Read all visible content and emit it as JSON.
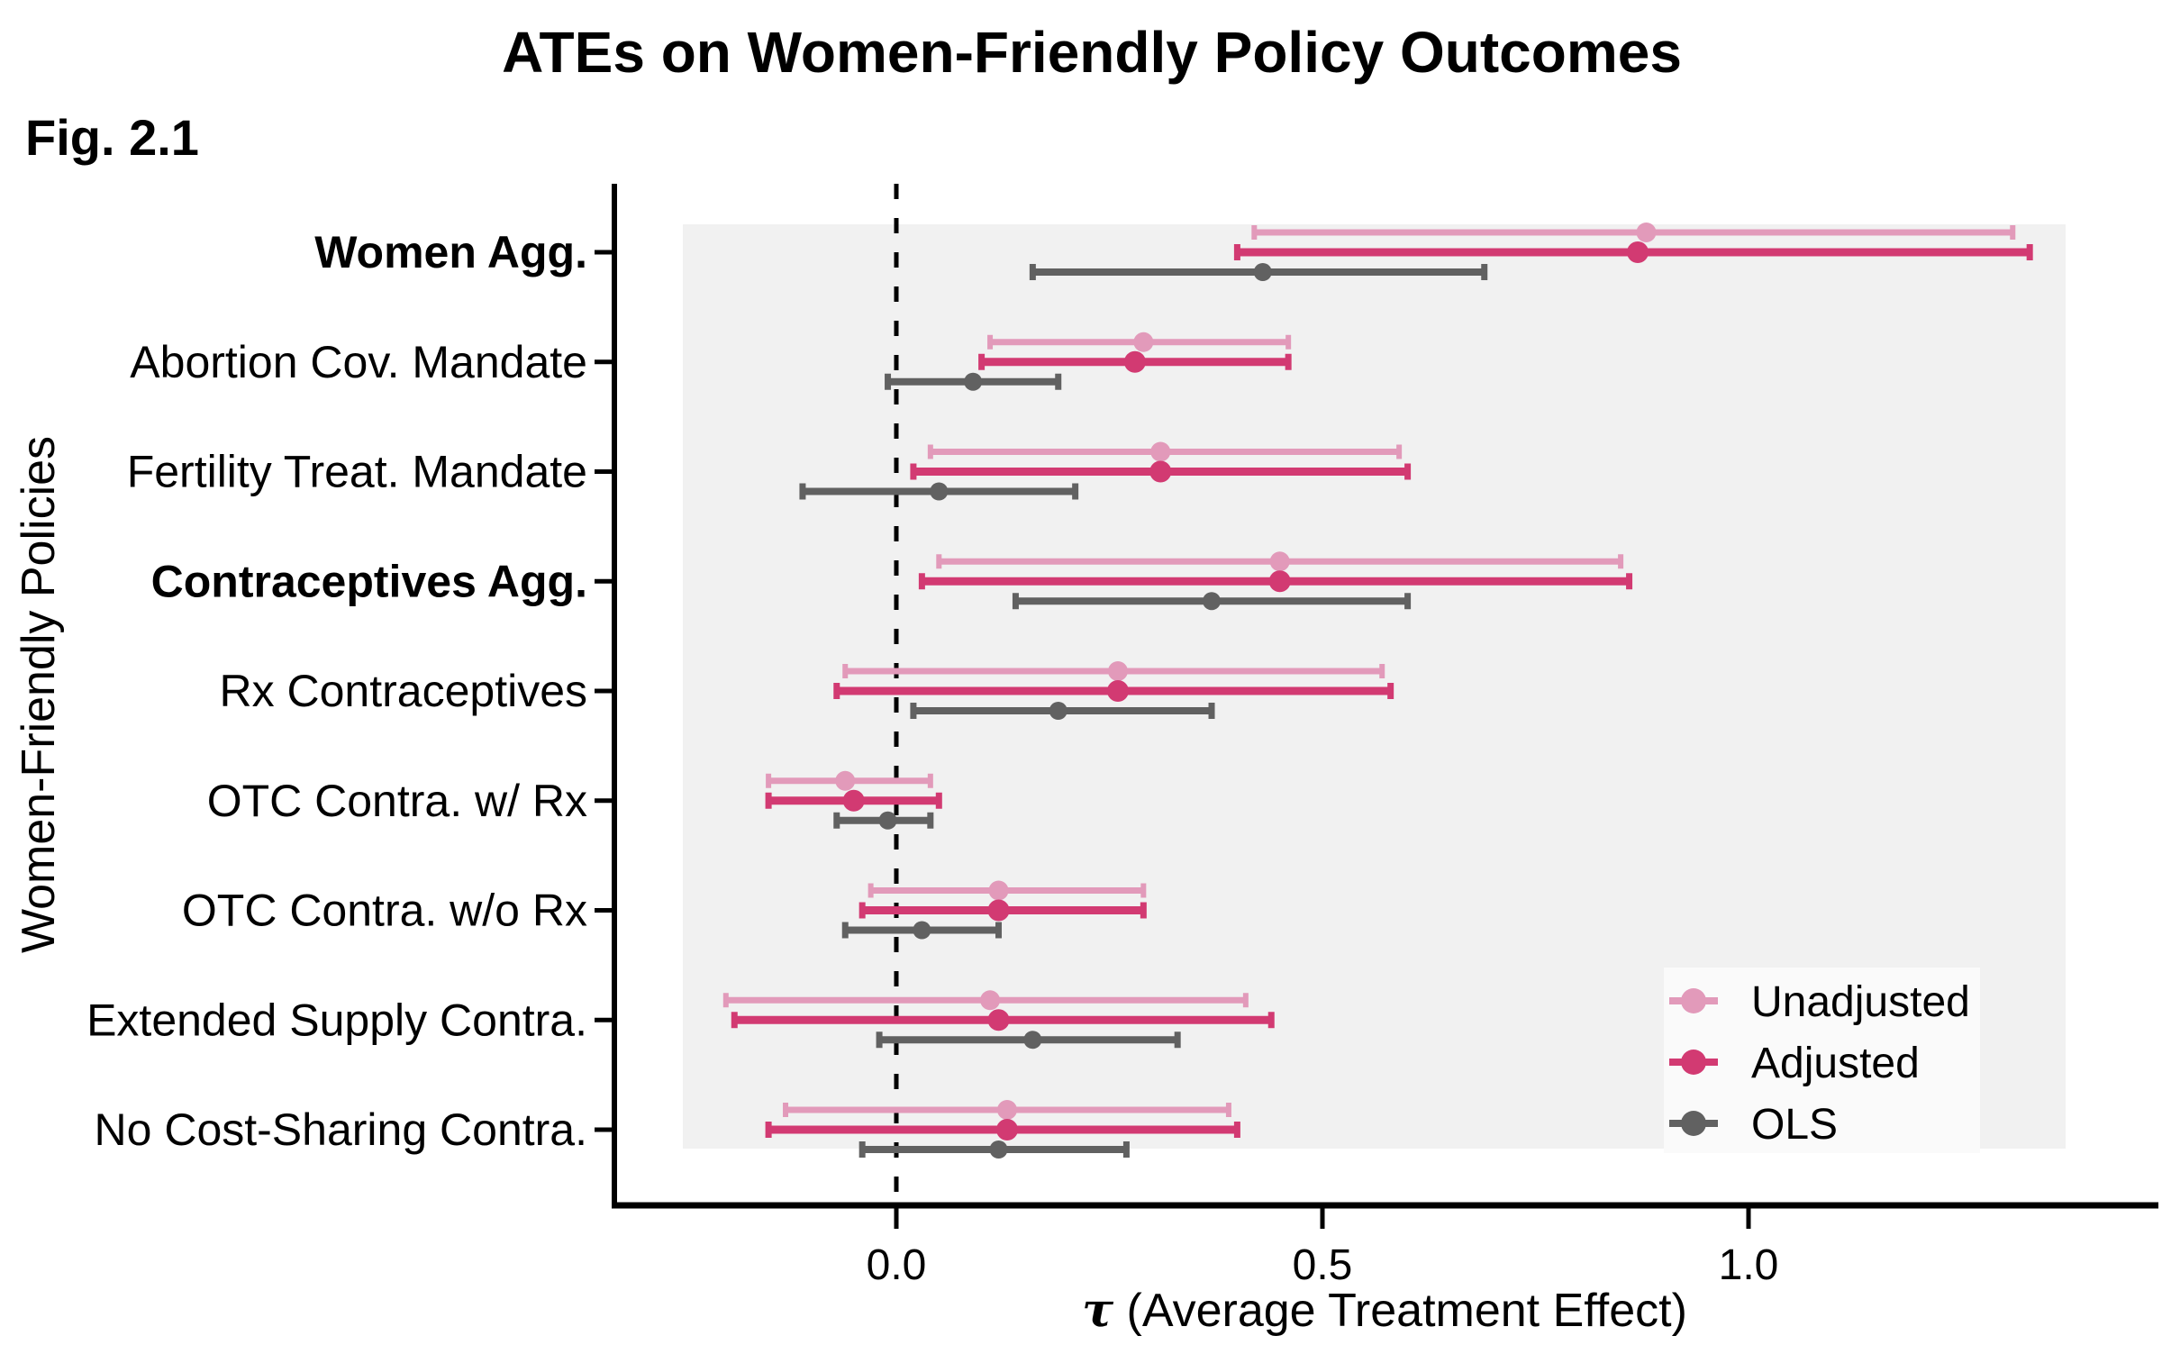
{
  "page": {
    "figure_label": "Fig. 2.1"
  },
  "chart_data": {
    "type": "scatter",
    "subtype": "forest-dot-whisker",
    "title": "ATEs on Women-Friendly Policy Outcomes",
    "xlabel": "τ (Average Treatment Effect)",
    "xlabel_symbol": "τ",
    "xlabel_rest": " (Average Treatment Effect)",
    "ylabel": "Women-Friendly Policies",
    "xlim": [
      -0.33,
      1.48
    ],
    "xtick_values": [
      0.0,
      0.5,
      1.0
    ],
    "xtick_labels": [
      "0.0",
      "0.5",
      "1.0"
    ],
    "zero_reference_line": 0.0,
    "grid": false,
    "legend_position": "inside-bottom-right",
    "categories": [
      {
        "label": "Women Agg.",
        "bold": true
      },
      {
        "label": "Abortion Cov. Mandate",
        "bold": false
      },
      {
        "label": "Fertility Treat. Mandate",
        "bold": false
      },
      {
        "label": "Contraceptives Agg.",
        "bold": true
      },
      {
        "label": "Rx Contraceptives",
        "bold": false
      },
      {
        "label": "OTC Contra. w/ Rx",
        "bold": false
      },
      {
        "label": "OTC Contra. w/o Rx",
        "bold": false
      },
      {
        "label": "Extended Supply Contra.",
        "bold": false
      },
      {
        "label": "No Cost-Sharing Contra.",
        "bold": false
      }
    ],
    "series": [
      {
        "name": "Unadjusted",
        "color": "#E29ABA",
        "points": [
          {
            "est": 0.88,
            "lo": 0.42,
            "hi": 1.31
          },
          {
            "est": 0.29,
            "lo": 0.11,
            "hi": 0.46
          },
          {
            "est": 0.31,
            "lo": 0.04,
            "hi": 0.59
          },
          {
            "est": 0.45,
            "lo": 0.05,
            "hi": 0.85
          },
          {
            "est": 0.26,
            "lo": -0.06,
            "hi": 0.57
          },
          {
            "est": -0.06,
            "lo": -0.15,
            "hi": 0.04
          },
          {
            "est": 0.12,
            "lo": -0.03,
            "hi": 0.29
          },
          {
            "est": 0.11,
            "lo": -0.2,
            "hi": 0.41
          },
          {
            "est": 0.13,
            "lo": -0.13,
            "hi": 0.39
          }
        ]
      },
      {
        "name": "Adjusted",
        "color": "#D23A72",
        "points": [
          {
            "est": 0.87,
            "lo": 0.4,
            "hi": 1.33
          },
          {
            "est": 0.28,
            "lo": 0.1,
            "hi": 0.46
          },
          {
            "est": 0.31,
            "lo": 0.02,
            "hi": 0.6
          },
          {
            "est": 0.45,
            "lo": 0.03,
            "hi": 0.86
          },
          {
            "est": 0.26,
            "lo": -0.07,
            "hi": 0.58
          },
          {
            "est": -0.05,
            "lo": -0.15,
            "hi": 0.05
          },
          {
            "est": 0.12,
            "lo": -0.04,
            "hi": 0.29
          },
          {
            "est": 0.12,
            "lo": -0.19,
            "hi": 0.44
          },
          {
            "est": 0.13,
            "lo": -0.15,
            "hi": 0.4
          }
        ]
      },
      {
        "name": "OLS",
        "color": "#616161",
        "points": [
          {
            "est": 0.43,
            "lo": 0.16,
            "hi": 0.69
          },
          {
            "est": 0.09,
            "lo": -0.01,
            "hi": 0.19
          },
          {
            "est": 0.05,
            "lo": -0.11,
            "hi": 0.21
          },
          {
            "est": 0.37,
            "lo": 0.14,
            "hi": 0.6
          },
          {
            "est": 0.19,
            "lo": 0.02,
            "hi": 0.37
          },
          {
            "est": -0.01,
            "lo": -0.07,
            "hi": 0.04
          },
          {
            "est": 0.03,
            "lo": -0.06,
            "hi": 0.12
          },
          {
            "est": 0.16,
            "lo": -0.02,
            "hi": 0.33
          },
          {
            "est": 0.12,
            "lo": -0.04,
            "hi": 0.27
          }
        ]
      }
    ],
    "colors": {
      "panel_bg": "#F1F1F1",
      "legend_bg": "#FAFAFA",
      "axis": "#000000"
    }
  }
}
